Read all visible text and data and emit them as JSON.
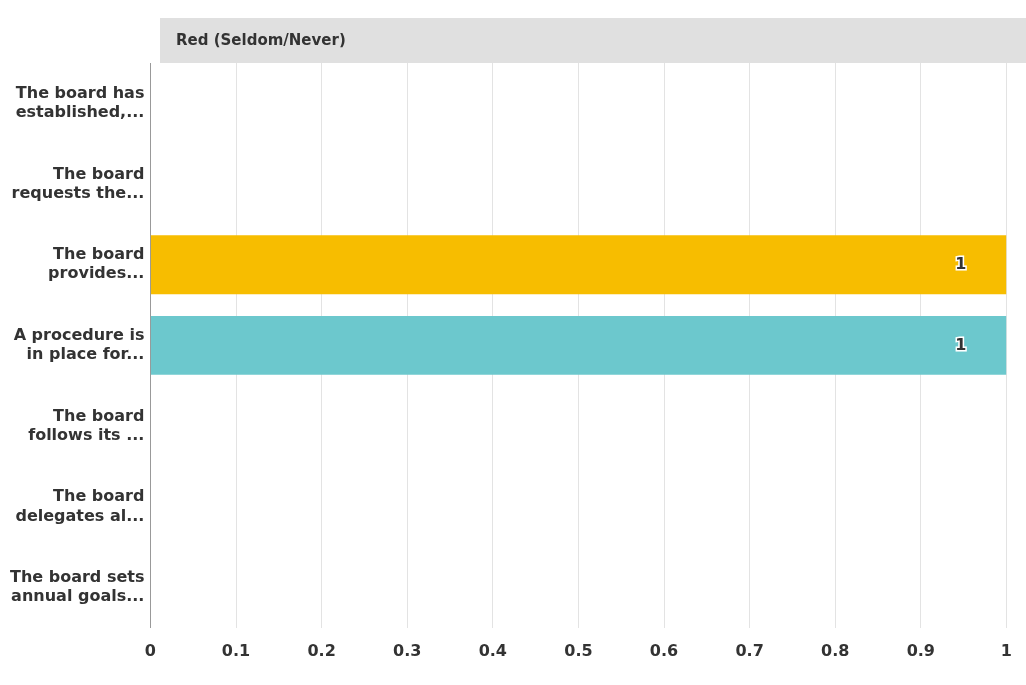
{
  "chart_data": {
    "type": "bar",
    "orientation": "horizontal",
    "title": "Red (Seldom/Never)",
    "categories": [
      "The board has established,...",
      "The board requests the...",
      "The board provides...",
      "A procedure is in place for...",
      "The board follows its ...",
      "The board delegates al...",
      "The board sets annual goals..."
    ],
    "values": [
      null,
      null,
      1,
      1,
      null,
      null,
      null
    ],
    "colors": [
      null,
      null,
      "#f7bd00",
      "#6cc8cd",
      null,
      null,
      null
    ],
    "value_labels": [
      null,
      null,
      "1",
      "1",
      null,
      null,
      null
    ],
    "xlim": [
      0,
      1
    ],
    "xticks": [
      0,
      0.1,
      0.2,
      0.3,
      0.4,
      0.5,
      0.6,
      0.7,
      0.8,
      0.9,
      1
    ],
    "grid": "x",
    "legend": false
  }
}
